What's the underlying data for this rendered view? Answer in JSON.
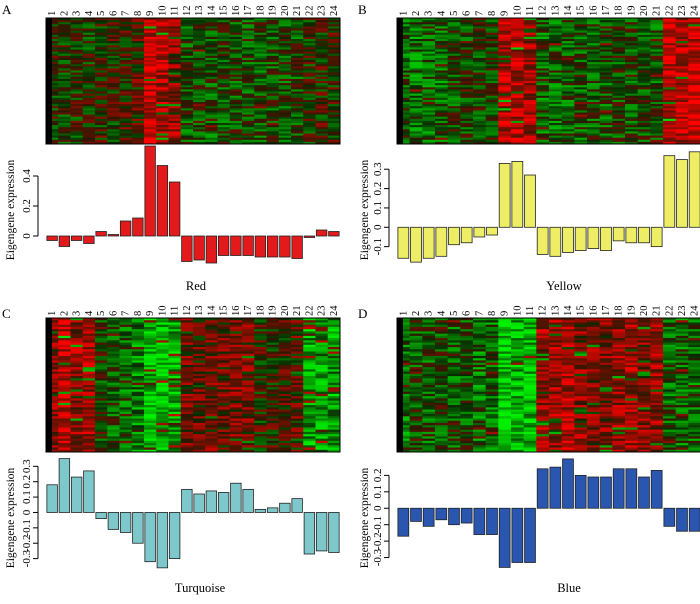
{
  "panels": [
    {
      "letter": "A",
      "name": "Red",
      "color": "#e31a1c",
      "heatmap_pattern": "red",
      "ylabel": "Eigengene expression",
      "y_ticks": [
        0,
        0.2,
        0.4
      ],
      "ylim": [
        -0.2,
        0.6
      ],
      "sample_labels": [
        "1",
        "2",
        "3",
        "4",
        "5",
        "6",
        "7",
        "8",
        "9",
        "10",
        "11",
        "12",
        "13",
        "14",
        "15",
        "16",
        "17",
        "18",
        "19",
        "20",
        "21",
        "22",
        "23",
        "24"
      ],
      "values": [
        -0.03,
        -0.07,
        -0.03,
        -0.05,
        0.03,
        0.01,
        0.1,
        0.12,
        0.6,
        0.47,
        0.36,
        -0.17,
        -0.16,
        -0.18,
        -0.13,
        -0.13,
        -0.13,
        -0.14,
        -0.14,
        -0.14,
        -0.15,
        -0.01,
        0.04,
        0.03
      ]
    },
    {
      "letter": "B",
      "name": "Yellow",
      "color": "#eeee66",
      "heatmap_pattern": "yellow",
      "ylabel": "Eigengene expression",
      "y_ticks": [
        -0.1,
        0,
        0.1,
        0.2,
        0.3
      ],
      "ylim": [
        -0.2,
        0.42
      ],
      "sample_labels": [
        "1",
        "2",
        "3",
        "4",
        "5",
        "6",
        "7",
        "8",
        "9",
        "10",
        "11",
        "12",
        "13",
        "14",
        "15",
        "16",
        "17",
        "18",
        "19",
        "20",
        "21",
        "22",
        "23",
        "24"
      ],
      "values": [
        -0.16,
        -0.18,
        -0.16,
        -0.15,
        -0.09,
        -0.08,
        -0.05,
        -0.04,
        0.33,
        0.34,
        0.27,
        -0.14,
        -0.15,
        -0.13,
        -0.12,
        -0.11,
        -0.12,
        -0.07,
        -0.08,
        -0.08,
        -0.1,
        0.37,
        0.35,
        0.39
      ]
    },
    {
      "letter": "C",
      "name": "Turquoise",
      "color": "#7ec8cc",
      "heatmap_pattern": "turquoise",
      "ylabel": "Eigengene expression",
      "y_ticks": [
        -0.3,
        -0.2,
        -0.1,
        0,
        0.1,
        0.2,
        0.3
      ],
      "ylim": [
        -0.4,
        0.38
      ],
      "sample_labels": [
        "1",
        "2",
        "3",
        "4",
        "5",
        "6",
        "7",
        "8",
        "9",
        "10",
        "11",
        "12",
        "13",
        "14",
        "15",
        "16",
        "17",
        "18",
        "19",
        "20",
        "21",
        "22",
        "23",
        "24"
      ],
      "values": [
        0.18,
        0.35,
        0.23,
        0.27,
        -0.04,
        -0.11,
        -0.13,
        -0.2,
        -0.32,
        -0.36,
        -0.3,
        0.15,
        0.12,
        0.14,
        0.13,
        0.19,
        0.15,
        0.02,
        0.03,
        0.06,
        0.09,
        -0.27,
        -0.25,
        -0.26
      ]
    },
    {
      "letter": "D",
      "name": "Blue",
      "color": "#2a56b0",
      "heatmap_pattern": "blue",
      "ylabel": "Eigengene expression",
      "y_ticks": [
        -0.3,
        -0.2,
        -0.1,
        0,
        0.1,
        0.2
      ],
      "ylim": [
        -0.4,
        0.33
      ],
      "sample_labels": [
        "1",
        "2",
        "3",
        "4",
        "5",
        "6",
        "7",
        "8",
        "9",
        "10",
        "11",
        "12",
        "13",
        "14",
        "15",
        "16",
        "17",
        "18",
        "19",
        "20",
        "21",
        "22",
        "23",
        "24"
      ],
      "values": [
        -0.17,
        -0.08,
        -0.11,
        -0.07,
        -0.1,
        -0.09,
        -0.16,
        -0.16,
        -0.36,
        -0.33,
        -0.33,
        0.24,
        0.25,
        0.3,
        0.2,
        0.19,
        0.19,
        0.24,
        0.24,
        0.19,
        0.23,
        -0.11,
        -0.14,
        -0.14
      ]
    }
  ],
  "chart_data": [
    {
      "type": "bar",
      "title": "Red",
      "ylabel": "Eigengene expression",
      "categories": [
        "1",
        "2",
        "3",
        "4",
        "5",
        "6",
        "7",
        "8",
        "9",
        "10",
        "11",
        "12",
        "13",
        "14",
        "15",
        "16",
        "17",
        "18",
        "19",
        "20",
        "21",
        "22",
        "23",
        "24"
      ],
      "values": [
        -0.03,
        -0.07,
        -0.03,
        -0.05,
        0.03,
        0.01,
        0.1,
        0.12,
        0.6,
        0.47,
        0.36,
        -0.17,
        -0.16,
        -0.18,
        -0.13,
        -0.13,
        -0.13,
        -0.14,
        -0.14,
        -0.14,
        -0.15,
        -0.01,
        0.04,
        0.03
      ],
      "ylim": [
        -0.2,
        0.6
      ]
    },
    {
      "type": "bar",
      "title": "Yellow",
      "ylabel": "Eigengene expression",
      "categories": [
        "1",
        "2",
        "3",
        "4",
        "5",
        "6",
        "7",
        "8",
        "9",
        "10",
        "11",
        "12",
        "13",
        "14",
        "15",
        "16",
        "17",
        "18",
        "19",
        "20",
        "21",
        "22",
        "23",
        "24"
      ],
      "values": [
        -0.16,
        -0.18,
        -0.16,
        -0.15,
        -0.09,
        -0.08,
        -0.05,
        -0.04,
        0.33,
        0.34,
        0.27,
        -0.14,
        -0.15,
        -0.13,
        -0.12,
        -0.11,
        -0.12,
        -0.07,
        -0.08,
        -0.08,
        -0.1,
        0.37,
        0.35,
        0.39
      ],
      "ylim": [
        -0.2,
        0.42
      ]
    },
    {
      "type": "bar",
      "title": "Turquoise",
      "ylabel": "Eigengene expression",
      "categories": [
        "1",
        "2",
        "3",
        "4",
        "5",
        "6",
        "7",
        "8",
        "9",
        "10",
        "11",
        "12",
        "13",
        "14",
        "15",
        "16",
        "17",
        "18",
        "19",
        "20",
        "21",
        "22",
        "23",
        "24"
      ],
      "values": [
        0.18,
        0.35,
        0.23,
        0.27,
        -0.04,
        -0.11,
        -0.13,
        -0.2,
        -0.32,
        -0.36,
        -0.3,
        0.15,
        0.12,
        0.14,
        0.13,
        0.19,
        0.15,
        0.02,
        0.03,
        0.06,
        0.09,
        -0.27,
        -0.25,
        -0.26
      ],
      "ylim": [
        -0.4,
        0.38
      ]
    },
    {
      "type": "bar",
      "title": "Blue",
      "ylabel": "Eigengene expression",
      "categories": [
        "1",
        "2",
        "3",
        "4",
        "5",
        "6",
        "7",
        "8",
        "9",
        "10",
        "11",
        "12",
        "13",
        "14",
        "15",
        "16",
        "17",
        "18",
        "19",
        "20",
        "21",
        "22",
        "23",
        "24"
      ],
      "values": [
        -0.17,
        -0.08,
        -0.11,
        -0.07,
        -0.1,
        -0.09,
        -0.16,
        -0.16,
        -0.36,
        -0.33,
        -0.33,
        0.24,
        0.25,
        0.3,
        0.2,
        0.19,
        0.19,
        0.24,
        0.24,
        0.19,
        0.23,
        -0.11,
        -0.14,
        -0.14
      ],
      "ylim": [
        -0.4,
        0.33
      ]
    }
  ]
}
